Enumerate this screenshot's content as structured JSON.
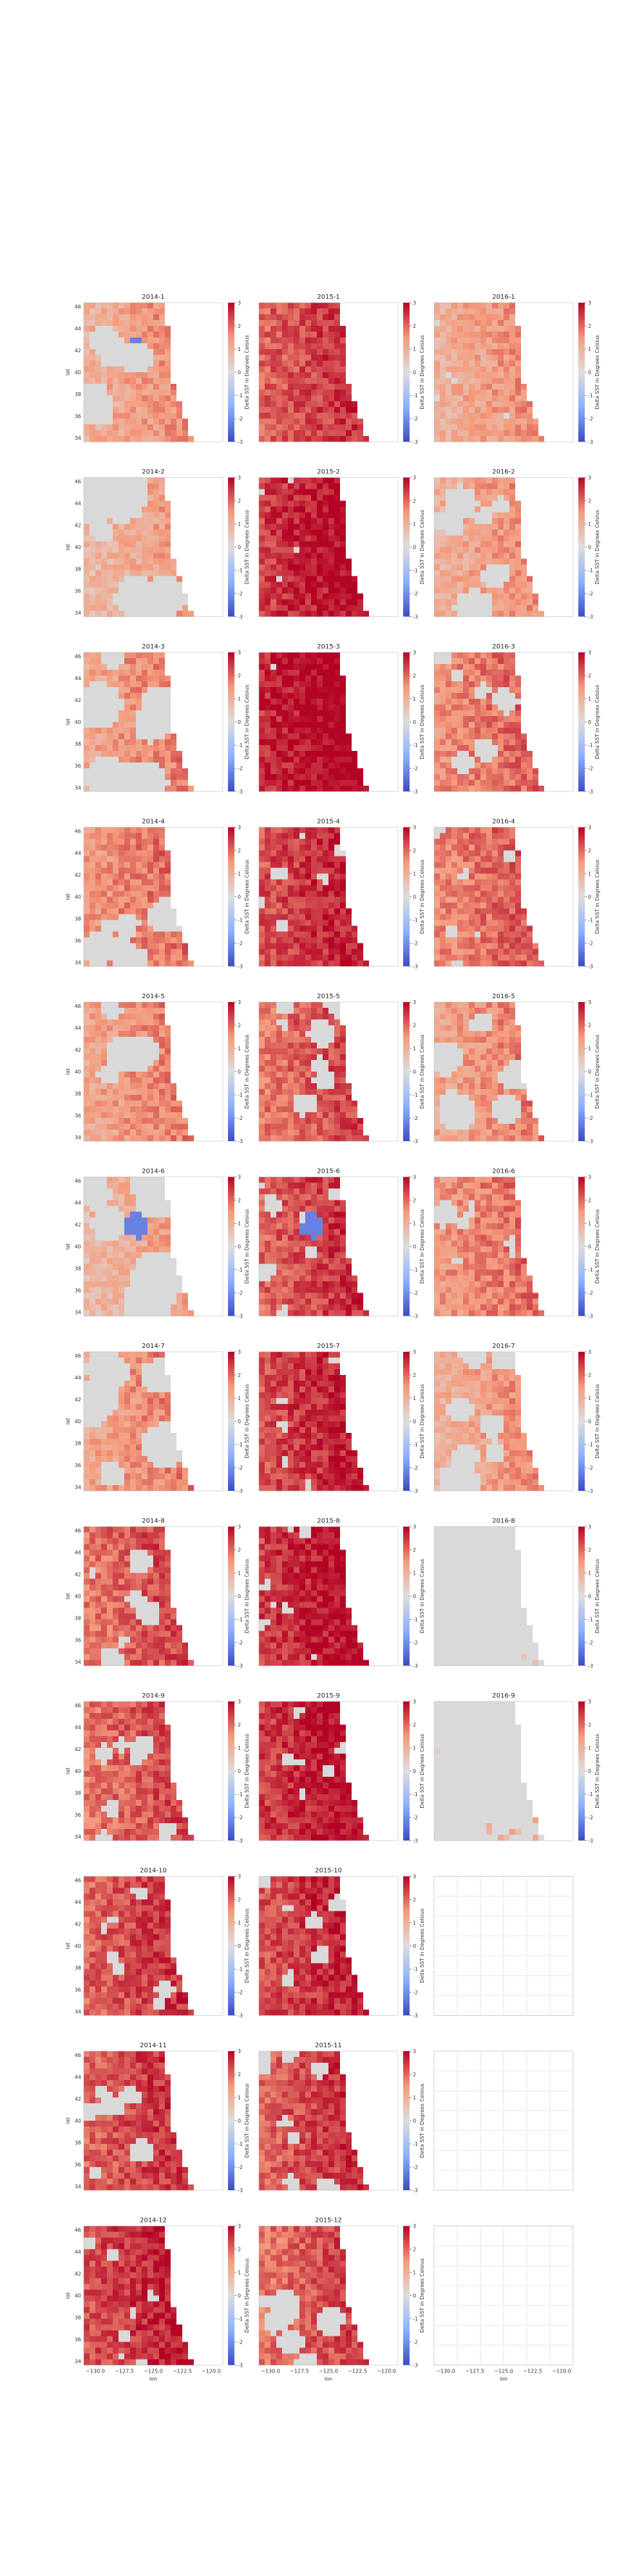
{
  "chart_data": {
    "type": "heatmap",
    "description_units": "Delta SST in Degrees Celsius",
    "colorbar_label": "Delta SST in Degrees Celsius",
    "colorbar_ticks": [
      -3,
      -2,
      -1,
      0,
      1,
      2,
      3
    ],
    "colorbar_range": [
      -3,
      3
    ],
    "colormap": "coolwarm",
    "land_color": "#d9d9d9",
    "xlabel": "lon",
    "ylabel": "lat",
    "xticks": [
      "−130.0",
      "−127.5",
      "−125.0",
      "−122.5",
      "−120.0"
    ],
    "yticks": [
      "34",
      "36",
      "38",
      "40",
      "42",
      "44",
      "46"
    ],
    "columns": [
      "2014",
      "2015",
      "2016"
    ],
    "rows": [
      [
        "2014-1",
        "2015-1",
        "2016-1"
      ],
      [
        "2014-2",
        "2015-2",
        "2016-2"
      ],
      [
        "2014-3",
        "2015-3",
        "2016-3"
      ],
      [
        "2014-4",
        "2015-4",
        "2016-4"
      ],
      [
        "2014-5",
        "2015-5",
        "2016-5"
      ],
      [
        "2014-6",
        "2015-6",
        "2016-6"
      ],
      [
        "2014-7",
        "2015-7",
        "2016-7"
      ],
      [
        "2014-8",
        "2015-8",
        "2016-8"
      ],
      [
        "2014-9",
        "2015-9",
        "2016-9"
      ],
      [
        "2014-10",
        "2015-10",
        ""
      ],
      [
        "2014-11",
        "2015-11",
        ""
      ],
      [
        "2014-12",
        "2015-12",
        ""
      ]
    ],
    "panel_mean_anomaly": [
      [
        1.0,
        2.0,
        1.0
      ],
      [
        0.8,
        2.4,
        1.0
      ],
      [
        1.2,
        2.6,
        1.5
      ],
      [
        1.4,
        2.2,
        1.6
      ],
      [
        1.2,
        1.8,
        1.2
      ],
      [
        0.8,
        2.0,
        1.4
      ],
      [
        1.2,
        2.2,
        1.0
      ],
      [
        1.8,
        2.4,
        0.0
      ],
      [
        1.8,
        2.4,
        0.6
      ],
      [
        2.0,
        2.2,
        null
      ],
      [
        2.0,
        2.0,
        null
      ],
      [
        2.2,
        1.8,
        null
      ]
    ],
    "panel_land_fraction": [
      [
        0.35,
        0.0,
        0.05
      ],
      [
        0.45,
        0.05,
        0.3
      ],
      [
        0.35,
        0.05,
        0.2
      ],
      [
        0.3,
        0.1,
        0.1
      ],
      [
        0.3,
        0.2,
        0.3
      ],
      [
        0.4,
        0.15,
        0.2
      ],
      [
        0.35,
        0.1,
        0.35
      ],
      [
        0.2,
        0.1,
        0.95
      ],
      [
        0.25,
        0.1,
        0.85
      ],
      [
        0.15,
        0.15,
        null
      ],
      [
        0.2,
        0.2,
        null
      ],
      [
        0.1,
        0.25,
        null
      ]
    ],
    "panel_cold_anomaly": [
      [
        true,
        false,
        false
      ],
      [
        false,
        false,
        false
      ],
      [
        false,
        false,
        false
      ],
      [
        false,
        false,
        false
      ],
      [
        false,
        false,
        false
      ],
      [
        true,
        true,
        false
      ],
      [
        false,
        false,
        false
      ],
      [
        false,
        false,
        true
      ],
      [
        false,
        false,
        true
      ],
      [
        false,
        false,
        null
      ],
      [
        false,
        false,
        null
      ],
      [
        false,
        false,
        null
      ]
    ]
  }
}
